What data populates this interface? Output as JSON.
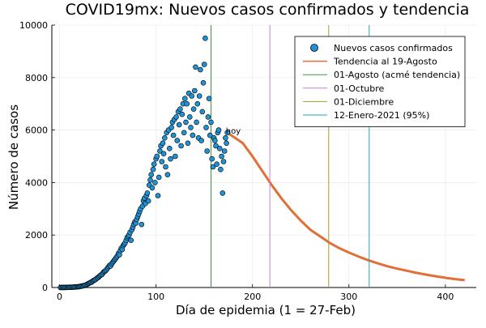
{
  "chart_data": {
    "type": "scatter",
    "title": "COVID19mx: Nuevos casos confirmados y tendencia",
    "xlabel": "Día de epidemia (1 = 27-Feb)",
    "ylabel": "Número de casos",
    "xlim": [
      -8,
      432
    ],
    "ylim": [
      0,
      10000
    ],
    "xticks": [
      0,
      100,
      200,
      300,
      400
    ],
    "yticks": [
      0,
      2000,
      4000,
      6000,
      8000,
      10000
    ],
    "grid": true,
    "legend_position": "top-right",
    "annotation": {
      "text": "hoy",
      "x": 174,
      "y": 5950
    },
    "series": [
      {
        "name": "Nuevos casos confirmados",
        "kind": "scatter",
        "color": "#1f93d6",
        "points": [
          [
            1,
            1
          ],
          [
            2,
            2
          ],
          [
            3,
            3
          ],
          [
            4,
            2
          ],
          [
            5,
            4
          ],
          [
            6,
            3
          ],
          [
            7,
            5
          ],
          [
            8,
            6
          ],
          [
            9,
            5
          ],
          [
            10,
            8
          ],
          [
            11,
            10
          ],
          [
            12,
            9
          ],
          [
            13,
            12
          ],
          [
            14,
            15
          ],
          [
            15,
            18
          ],
          [
            16,
            20
          ],
          [
            17,
            22
          ],
          [
            18,
            25
          ],
          [
            19,
            30
          ],
          [
            20,
            32
          ],
          [
            21,
            40
          ],
          [
            22,
            45
          ],
          [
            23,
            55
          ],
          [
            24,
            60
          ],
          [
            25,
            70
          ],
          [
            26,
            80
          ],
          [
            27,
            95
          ],
          [
            28,
            110
          ],
          [
            29,
            130
          ],
          [
            30,
            150
          ],
          [
            31,
            170
          ],
          [
            32,
            190
          ],
          [
            33,
            200
          ],
          [
            34,
            230
          ],
          [
            35,
            260
          ],
          [
            36,
            280
          ],
          [
            37,
            300
          ],
          [
            38,
            330
          ],
          [
            39,
            360
          ],
          [
            40,
            380
          ],
          [
            41,
            420
          ],
          [
            42,
            450
          ],
          [
            43,
            480
          ],
          [
            44,
            500
          ],
          [
            45,
            550
          ],
          [
            46,
            600
          ],
          [
            47,
            620
          ],
          [
            48,
            650
          ],
          [
            49,
            700
          ],
          [
            50,
            750
          ],
          [
            51,
            800
          ],
          [
            52,
            850
          ],
          [
            53,
            820
          ],
          [
            54,
            900
          ],
          [
            55,
            950
          ],
          [
            56,
            1000
          ],
          [
            57,
            1050
          ],
          [
            58,
            1100
          ],
          [
            59,
            1150
          ],
          [
            60,
            1200
          ],
          [
            61,
            1300
          ],
          [
            62,
            1250
          ],
          [
            63,
            1400
          ],
          [
            64,
            1500
          ],
          [
            65,
            1450
          ],
          [
            66,
            1600
          ],
          [
            67,
            1650
          ],
          [
            68,
            1700
          ],
          [
            69,
            1800
          ],
          [
            70,
            1900
          ],
          [
            71,
            1950
          ],
          [
            72,
            2000
          ],
          [
            73,
            2100
          ],
          [
            74,
            1800
          ],
          [
            75,
            2200
          ],
          [
            76,
            2300
          ],
          [
            77,
            2400
          ],
          [
            78,
            2500
          ],
          [
            79,
            2450
          ],
          [
            80,
            2600
          ],
          [
            81,
            2700
          ],
          [
            82,
            2800
          ],
          [
            83,
            2900
          ],
          [
            84,
            3000
          ],
          [
            85,
            2400
          ],
          [
            86,
            3100
          ],
          [
            87,
            3300
          ],
          [
            88,
            3400
          ],
          [
            89,
            3200
          ],
          [
            90,
            3500
          ],
          [
            91,
            3600
          ],
          [
            92,
            3300
          ],
          [
            93,
            3900
          ],
          [
            94,
            4100
          ],
          [
            95,
            4300
          ],
          [
            96,
            3800
          ],
          [
            97,
            4500
          ],
          [
            98,
            4700
          ],
          [
            99,
            4000
          ],
          [
            100,
            4900
          ],
          [
            101,
            5000
          ],
          [
            102,
            3500
          ],
          [
            103,
            4200
          ],
          [
            104,
            5200
          ],
          [
            105,
            5400
          ],
          [
            106,
            4800
          ],
          [
            107,
            5500
          ],
          [
            108,
            5100
          ],
          [
            109,
            5700
          ],
          [
            110,
            4600
          ],
          [
            111,
            5900
          ],
          [
            112,
            4300
          ],
          [
            113,
            6000
          ],
          [
            114,
            5300
          ],
          [
            115,
            4900
          ],
          [
            116,
            6100
          ],
          [
            117,
            6300
          ],
          [
            118,
            5800
          ],
          [
            119,
            6400
          ],
          [
            120,
            5000
          ],
          [
            121,
            6500
          ],
          [
            122,
            5600
          ],
          [
            123,
            6700
          ],
          [
            124,
            6200
          ],
          [
            125,
            6800
          ],
          [
            126,
            5400
          ],
          [
            127,
            6600
          ],
          [
            128,
            7000
          ],
          [
            129,
            5900
          ],
          [
            130,
            7200
          ],
          [
            131,
            6300
          ],
          [
            132,
            7000
          ],
          [
            133,
            5500
          ],
          [
            134,
            7400
          ],
          [
            135,
            6500
          ],
          [
            136,
            6100
          ],
          [
            137,
            7300
          ],
          [
            138,
            5800
          ],
          [
            139,
            6800
          ],
          [
            140,
            7500
          ],
          [
            141,
            8400
          ],
          [
            142,
            6300
          ],
          [
            143,
            7000
          ],
          [
            144,
            5700
          ],
          [
            145,
            7300
          ],
          [
            146,
            8300
          ],
          [
            147,
            5600
          ],
          [
            148,
            6700
          ],
          [
            149,
            7800
          ],
          [
            150,
            8500
          ],
          [
            151,
            9500
          ],
          [
            152,
            6100
          ],
          [
            153,
            5200
          ],
          [
            154,
            6500
          ],
          [
            155,
            7200
          ],
          [
            156,
            5800
          ],
          [
            157,
            6300
          ],
          [
            158,
            4900
          ],
          [
            159,
            4600
          ],
          [
            160,
            5700
          ],
          [
            161,
            5600
          ],
          [
            162,
            5400
          ],
          [
            163,
            4700
          ],
          [
            164,
            5900
          ],
          [
            165,
            6000
          ],
          [
            166,
            5300
          ],
          [
            167,
            4500
          ],
          [
            168,
            5000
          ],
          [
            169,
            3600
          ],
          [
            170,
            4800
          ],
          [
            171,
            5200
          ],
          [
            172,
            5700
          ],
          [
            173,
            5500
          ],
          [
            174,
            5900
          ]
        ]
      },
      {
        "name": "Tendencia al 19-Agosto",
        "kind": "line",
        "color": "#e07038",
        "points": [
          [
            174,
            5900
          ],
          [
            190,
            5500
          ],
          [
            200,
            5000
          ],
          [
            210,
            4450
          ],
          [
            220,
            3900
          ],
          [
            230,
            3400
          ],
          [
            240,
            2950
          ],
          [
            250,
            2550
          ],
          [
            260,
            2200
          ],
          [
            270,
            1950
          ],
          [
            280,
            1700
          ],
          [
            290,
            1500
          ],
          [
            300,
            1330
          ],
          [
            310,
            1180
          ],
          [
            320,
            1040
          ],
          [
            330,
            920
          ],
          [
            340,
            810
          ],
          [
            350,
            720
          ],
          [
            360,
            640
          ],
          [
            370,
            560
          ],
          [
            380,
            490
          ],
          [
            390,
            430
          ],
          [
            400,
            370
          ],
          [
            410,
            320
          ],
          [
            420,
            280
          ]
        ]
      },
      {
        "name": "01-Agosto (acmé tendencia)",
        "kind": "vline",
        "color": "#3a9b3a",
        "x": 157
      },
      {
        "name": "01-Octubre",
        "kind": "vline",
        "color": "#c27ed4",
        "x": 218
      },
      {
        "name": "01-Diciembre",
        "kind": "vline",
        "color": "#a79b28",
        "x": 279
      },
      {
        "name": "12-Enero-2021 (95%)",
        "kind": "vline",
        "color": "#1eaab3",
        "x": 321
      }
    ]
  }
}
